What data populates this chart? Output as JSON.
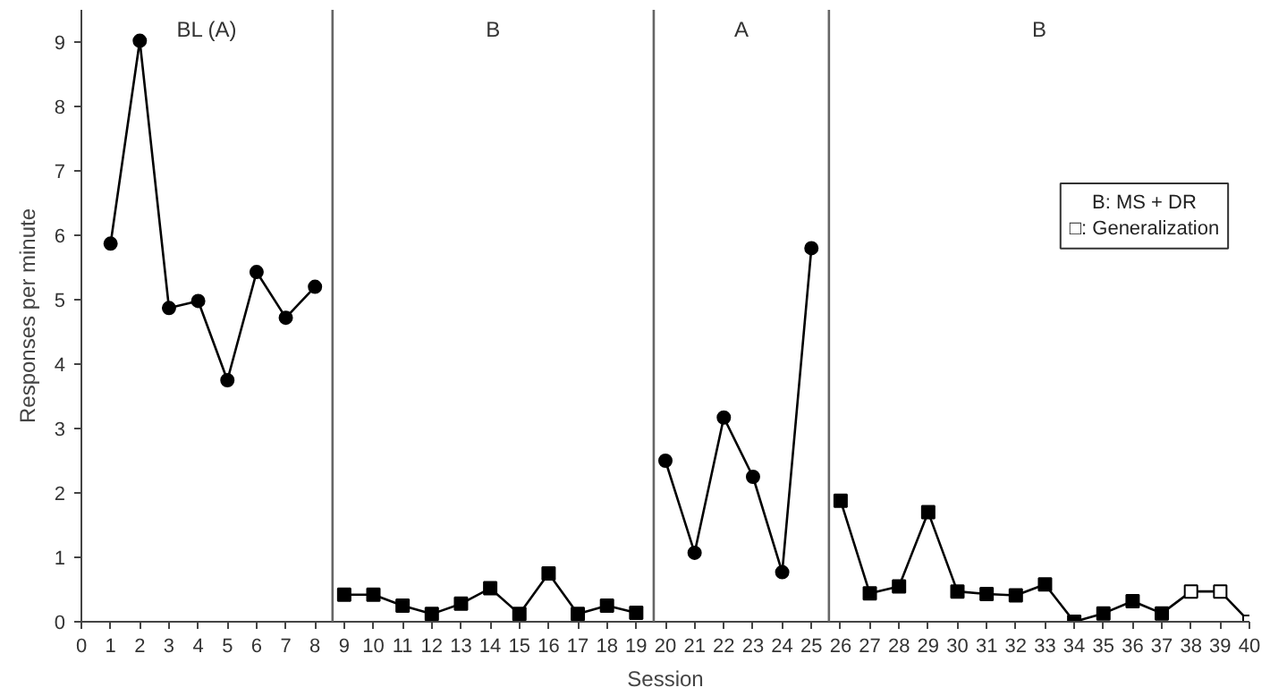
{
  "chart_data": {
    "type": "line",
    "xlabel": "Session",
    "ylabel": "Responses per minute",
    "xlim": [
      0,
      40
    ],
    "ylim": [
      0,
      9.5
    ],
    "xticks": [
      0,
      1,
      2,
      3,
      4,
      5,
      6,
      7,
      8,
      9,
      10,
      11,
      12,
      13,
      14,
      15,
      16,
      17,
      18,
      19,
      20,
      21,
      22,
      23,
      24,
      25,
      26,
      27,
      28,
      29,
      30,
      31,
      32,
      33,
      34,
      35,
      36,
      37,
      38,
      39,
      40
    ],
    "yticks": [
      0,
      1,
      2,
      3,
      4,
      5,
      6,
      7,
      8,
      9
    ],
    "grid": false,
    "line_style": "solid",
    "series": [
      {
        "color": "#000000",
        "marker": "circle",
        "x": [
          1,
          2,
          3,
          4,
          5,
          6,
          7,
          8
        ],
        "values": [
          5.87,
          9.02,
          4.87,
          4.98,
          3.75,
          5.43,
          4.72,
          5.2
        ]
      },
      {
        "color": "#000000",
        "marker": "square",
        "x": [
          9,
          10,
          11,
          12,
          13,
          14,
          15,
          16,
          17,
          18,
          19
        ],
        "values": [
          0.42,
          0.42,
          0.25,
          0.12,
          0.28,
          0.52,
          0.12,
          0.75,
          0.12,
          0.25,
          0.14
        ]
      },
      {
        "color": "#000000",
        "marker": "circle",
        "x": [
          20,
          21,
          22,
          23,
          24,
          25
        ],
        "values": [
          2.5,
          1.07,
          3.17,
          2.25,
          0.77,
          5.8
        ]
      },
      {
        "color": "#000000",
        "marker": "square",
        "x": [
          26,
          27,
          28,
          29,
          30,
          31,
          32,
          33,
          34,
          35,
          36,
          37,
          38,
          39,
          40
        ],
        "values": [
          1.88,
          0.44,
          0.55,
          1.7,
          0.47,
          0.43,
          0.41,
          0.58,
          0,
          0.13,
          0.32,
          0.13,
          0.47,
          0.47,
          0
        ],
        "colors": [
          "#000000",
          "#000000",
          "#000000",
          "#000000",
          "#000000",
          "#000000",
          "#000000",
          "#000000",
          "#000000",
          "#000000",
          "#000000",
          "#000000",
          "#ffffff",
          "#ffffff",
          "#ffffff"
        ]
      }
    ],
    "ref_lines": [
      {
        "axis": "x",
        "value": 8.6,
        "color": "#666666"
      },
      {
        "axis": "x",
        "value": 19.6,
        "color": "#666666"
      },
      {
        "axis": "x",
        "value": 25.6,
        "color": "#666666"
      }
    ],
    "annotations": [
      "BL (A)",
      "B",
      "A",
      "B",
      "B: MS + DR",
      "□: Generalization"
    ]
  }
}
